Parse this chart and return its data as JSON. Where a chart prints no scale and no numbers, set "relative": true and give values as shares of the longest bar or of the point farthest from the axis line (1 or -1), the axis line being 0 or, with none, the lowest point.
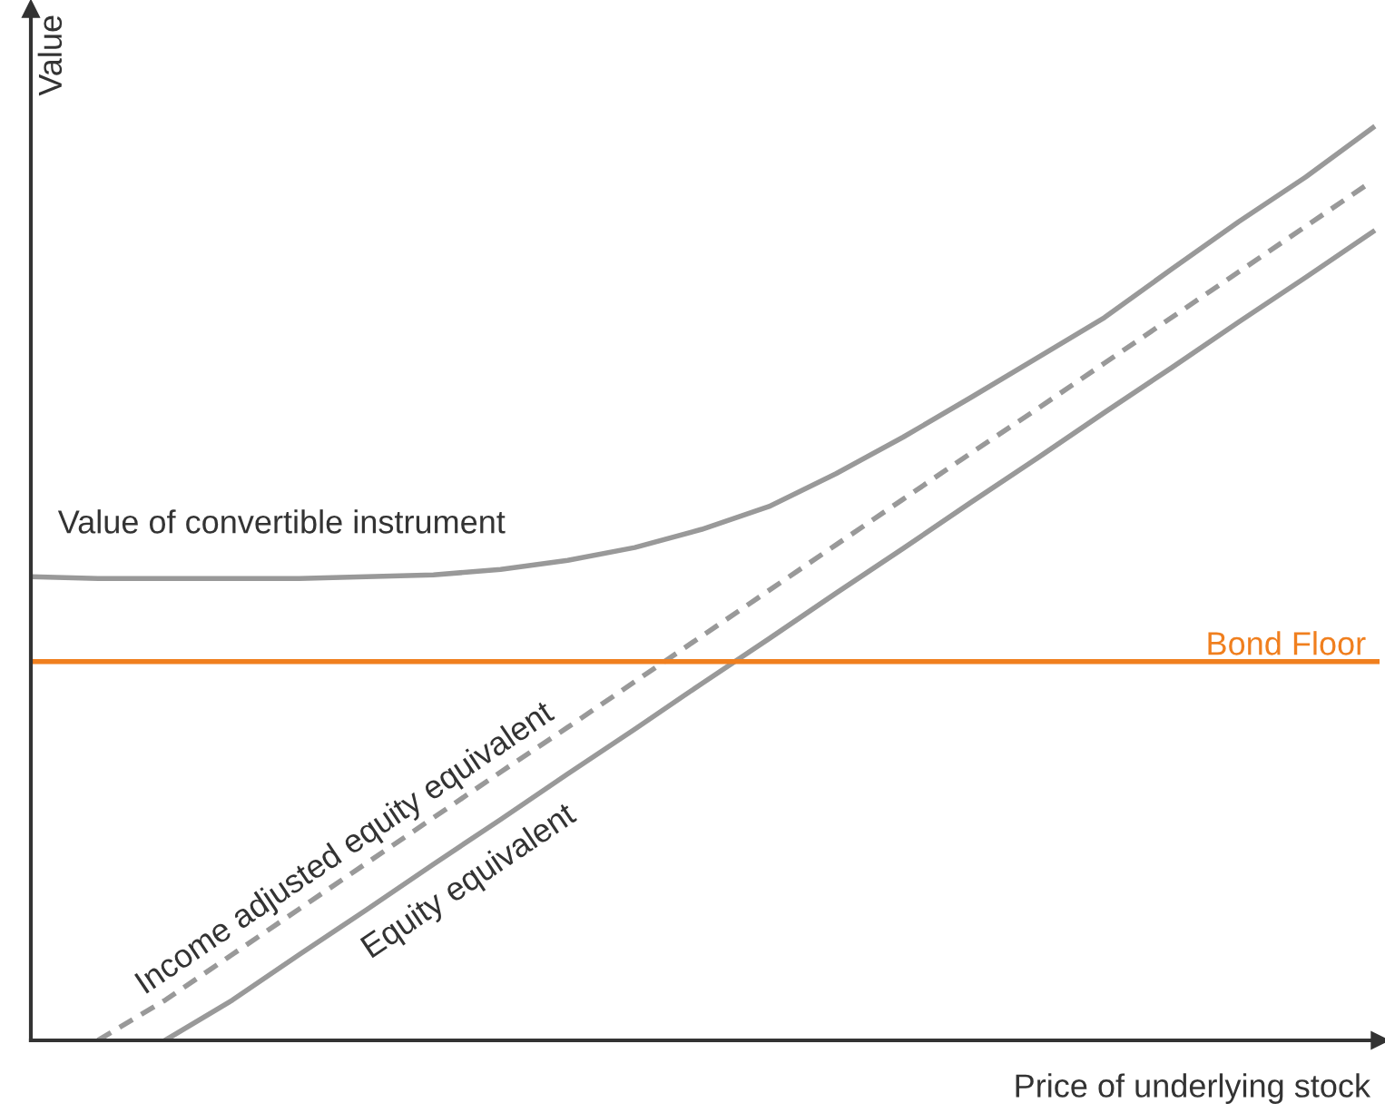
{
  "chart_data": {
    "type": "line",
    "relative": true,
    "xlabel": "Price of underlying stock",
    "ylabel": "Value",
    "legend": false,
    "marker": "none",
    "categories": [
      null,
      null,
      null,
      null,
      null,
      null,
      null,
      null,
      null,
      null,
      null,
      null,
      null,
      null,
      null,
      null,
      null,
      null,
      null,
      null,
      null
    ],
    "series": [
      {
        "color": "#999999",
        "line_style": "solid",
        "values": [
          0.508,
          0.506,
          0.506,
          0.506,
          0.506,
          0.508,
          0.51,
          0.516,
          0.526,
          0.54,
          0.56,
          0.585,
          0.621,
          0.661,
          0.704,
          0.748,
          0.792,
          0.845,
          0.897,
          0.946,
          1.0
        ]
      },
      {
        "color": "#999999",
        "line_style": "dashed",
        "values": [
          null,
          0,
          0.044,
          0.094,
          0.144,
          0.194,
          0.244,
          0.294,
          0.343,
          0.393,
          0.443,
          0.493,
          0.543,
          0.593,
          0.643,
          0.692,
          0.742,
          0.792,
          0.842,
          0.892,
          0.942
        ]
      },
      {
        "color": "#999999",
        "line_style": "solid",
        "values": [
          null,
          null,
          0,
          0.044,
          0.094,
          0.143,
          0.193,
          0.242,
          0.292,
          0.341,
          0.391,
          0.44,
          0.49,
          0.539,
          0.589,
          0.638,
          0.688,
          0.737,
          0.787,
          0.836,
          0.886
        ]
      }
    ],
    "ref_lines": [
      {
        "axis": "y",
        "value": 0.415,
        "label": "Bond Floor",
        "color": "#f07f1e"
      }
    ],
    "annotations": [
      "Value of convertible instrument",
      "Income adjusted equity equivalent",
      "Equity equivalent"
    ]
  }
}
